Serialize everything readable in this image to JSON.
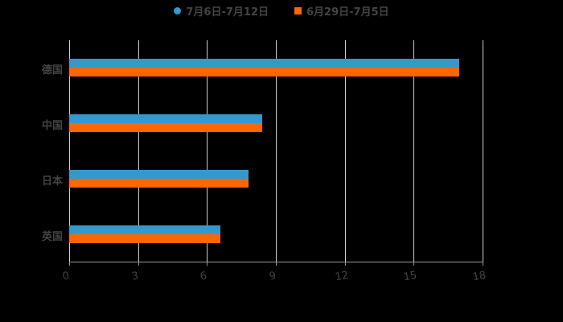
{
  "chart_data": {
    "type": "bar",
    "orientation": "horizontal",
    "title": "",
    "xlabel": "",
    "ylabel": "",
    "categories": [
      "德国",
      "中国",
      "日本",
      "英国"
    ],
    "series": [
      {
        "name": "7月6日-7月12日",
        "color": "#3399cc",
        "values": [
          17.0,
          8.4,
          7.8,
          6.6
        ]
      },
      {
        "name": "6月29日-7月5日",
        "color": "#ff6600",
        "values": [
          17.0,
          8.4,
          7.8,
          6.6
        ]
      }
    ],
    "xlim": [
      0,
      18
    ],
    "xticks": [
      "0",
      "3",
      "6",
      "9",
      "12",
      "15",
      "18"
    ],
    "grid": true,
    "legend_position": "top"
  }
}
